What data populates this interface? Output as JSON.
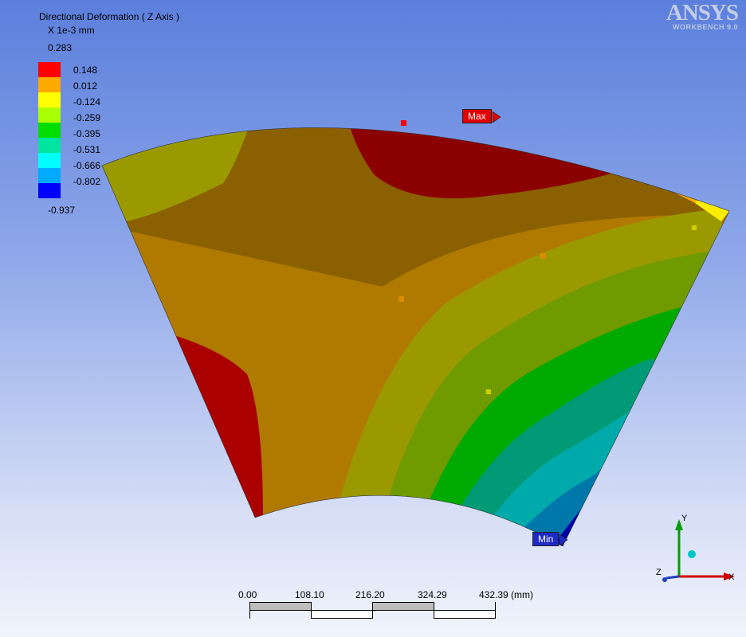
{
  "legend": {
    "title": "Directional Deformation ( Z Axis )",
    "unit": "X 1e-3 mm",
    "max_value": "0.283",
    "min_value": "-0.937",
    "levels": [
      {
        "label": "0.148",
        "color": "#ff0000"
      },
      {
        "label": "0.012",
        "color": "#ffaa00"
      },
      {
        "label": "-0.124",
        "color": "#ffff00"
      },
      {
        "label": "-0.259",
        "color": "#aaff00"
      },
      {
        "label": "-0.395",
        "color": "#00dd00"
      },
      {
        "label": "-0.531",
        "color": "#00e6a0"
      },
      {
        "label": "-0.666",
        "color": "#00ffff"
      },
      {
        "label": "-0.802",
        "color": "#00aaff"
      }
    ],
    "bottom_color": "#0000ff"
  },
  "logo": {
    "name": "ANSYS",
    "product": "WORKBENCH 9.0"
  },
  "probes": {
    "max_label": "Max",
    "min_label": "Min"
  },
  "scale": {
    "ticks": [
      "0.00",
      "108.10",
      "216.20",
      "324.29",
      "432.39 (mm)"
    ]
  },
  "triad": {
    "x_label": "X",
    "y_label": "Y",
    "z_label": "Z"
  }
}
